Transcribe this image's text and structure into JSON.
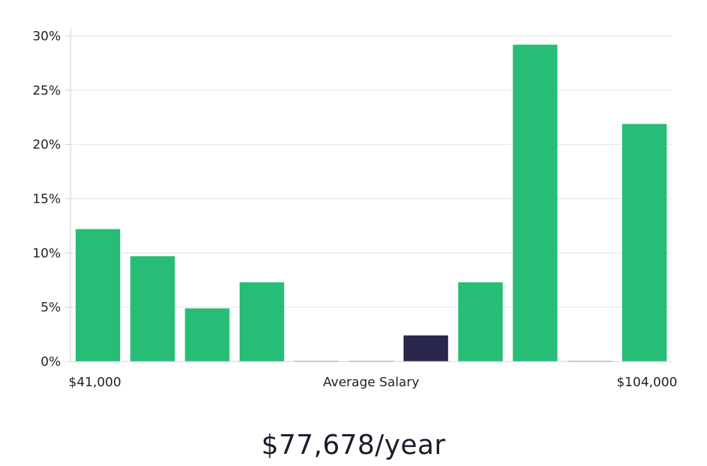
{
  "colors": {
    "bar": "#27bd77",
    "highlight": "#29264b",
    "grid": "#e2e2e2",
    "axis": "#cfcfcf"
  },
  "chart_data": {
    "type": "bar",
    "values": [
      12.2,
      9.7,
      4.9,
      7.3,
      0.05,
      0.05,
      2.4,
      7.3,
      29.2,
      0.05,
      21.9
    ],
    "highlight_index": 6,
    "ylim": [
      0,
      30
    ],
    "yticks": [
      "0%",
      "5%",
      "10%",
      "15%",
      "20%",
      "25%",
      "30%"
    ],
    "ytick_values": [
      0,
      5,
      10,
      15,
      20,
      25,
      30
    ],
    "x_labels": {
      "left": "$41,000",
      "center": "Average Salary",
      "right": "$104,000"
    },
    "grid": true
  },
  "summary": {
    "salary": "$77,678/year"
  }
}
